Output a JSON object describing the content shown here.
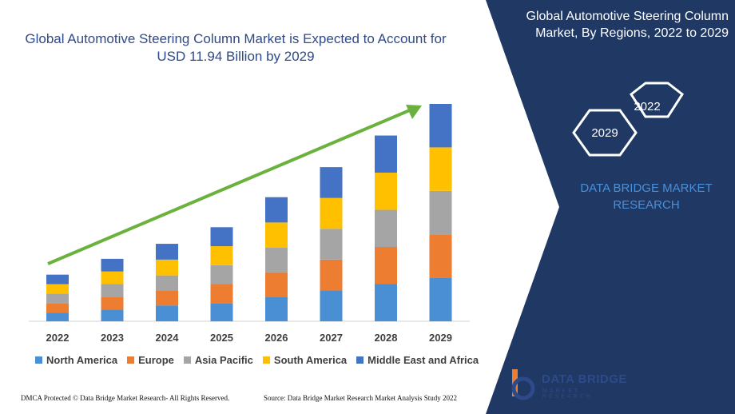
{
  "title": "Global Automotive Steering Column Market is Expected to Account for USD 11.94 Billion by 2029",
  "panel": {
    "title": "Global Automotive Steering Column Market, By Regions, 2022 to 2029",
    "hex_years": [
      "2022",
      "2029"
    ],
    "brand": "DATA BRIDGE MARKET RESEARCH"
  },
  "footer": {
    "left": "DMCA Protected © Data Bridge Market Research- All Rights Reserved.",
    "right": "Source: Data Bridge Market Research Market Analysis Study 2022"
  },
  "logo": {
    "name": "DATA BRIDGE",
    "sub": "MARKET RESEARCH"
  },
  "colors": {
    "panel": "#1f3864",
    "accent": "#2e4a8a",
    "arrow": "#6ab23d"
  },
  "chart_data": {
    "type": "bar",
    "stacked": true,
    "categories": [
      "2022",
      "2023",
      "2024",
      "2025",
      "2026",
      "2027",
      "2028",
      "2029"
    ],
    "series": [
      {
        "name": "North America",
        "color": "#4a8fd4",
        "values": [
          11,
          15,
          20,
          23,
          31,
          39,
          47,
          55
        ]
      },
      {
        "name": "Europe",
        "color": "#ed7d31",
        "values": [
          12,
          16,
          19,
          24,
          31,
          39,
          47,
          55
        ]
      },
      {
        "name": "Asia Pacific",
        "color": "#a5a5a5",
        "values": [
          12,
          16,
          19,
          24,
          31,
          39,
          47,
          55
        ]
      },
      {
        "name": "South America",
        "color": "#ffc000",
        "values": [
          12,
          16,
          20,
          24,
          32,
          39,
          47,
          55
        ]
      },
      {
        "name": "Middle East and Africa",
        "color": "#4472c4",
        "values": [
          12,
          16,
          20,
          24,
          32,
          39,
          47,
          55
        ]
      }
    ],
    "legend_position": "bottom",
    "grid": false
  }
}
